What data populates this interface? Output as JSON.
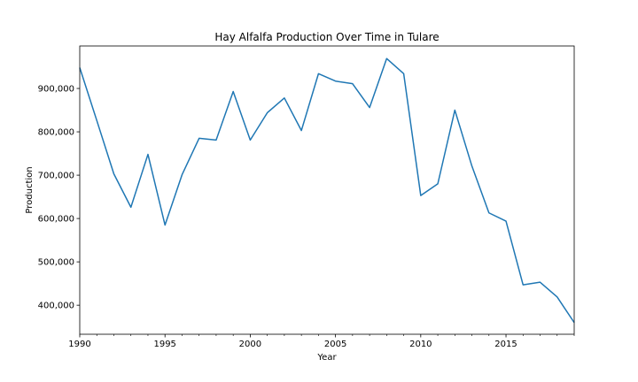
{
  "chart_data": {
    "type": "line",
    "title": "Hay Alfalfa Production Over Time in Tulare",
    "xlabel": "Year",
    "ylabel": "Production",
    "xlim": [
      1990,
      2019
    ],
    "ylim": [
      333000,
      998000
    ],
    "x_ticks": [
      1990,
      1995,
      2000,
      2005,
      2010,
      2015
    ],
    "y_ticks": [
      400000,
      500000,
      600000,
      700000,
      800000,
      900000
    ],
    "y_tick_labels": [
      "400,000",
      "500,000",
      "600,000",
      "700,000",
      "800,000",
      "900,000"
    ],
    "grid": false,
    "legend": "none",
    "color": "#1f77b4",
    "series": [
      {
        "x": [
          1990,
          1991,
          1992,
          1993,
          1994,
          1995,
          1996,
          1997,
          1998,
          1999,
          2000,
          2001,
          2002,
          2003,
          2004,
          2005,
          2006,
          2007,
          2008,
          2009,
          2010,
          2011,
          2012,
          2013,
          2014,
          2015,
          2016,
          2017,
          2018,
          2019
        ],
        "values": [
          948000,
          826000,
          703000,
          626000,
          748000,
          585000,
          701000,
          785000,
          781000,
          893000,
          781000,
          844000,
          878000,
          803000,
          934000,
          917000,
          911000,
          856000,
          969000,
          934000,
          653000,
          680000,
          850000,
          721000,
          613000,
          594000,
          447000,
          453000,
          419000,
          360000
        ]
      }
    ]
  }
}
